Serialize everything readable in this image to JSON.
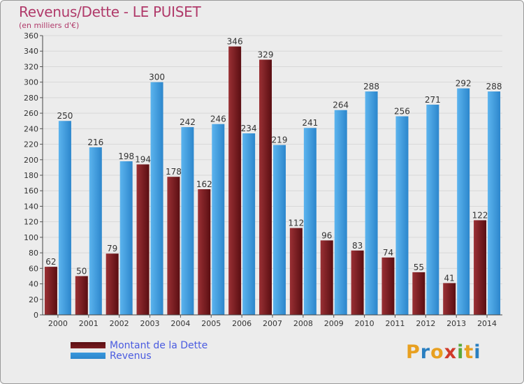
{
  "header": {
    "title": "Revenus/Dette - LE PUISET",
    "subtitle": "(en milliers d'€)"
  },
  "colors": {
    "dette": "#7a1c20",
    "revenus": "#3a98dc",
    "title": "#b03a6a",
    "legend_text": "#4a5be0"
  },
  "legend": {
    "dette_label": "Montant de la Dette",
    "revenus_label": "Revenus"
  },
  "brand": {
    "letters": [
      "P",
      "r",
      "o",
      "x",
      "i",
      "t",
      "i"
    ],
    "colors": [
      "#e8a020",
      "#2a7fc0",
      "#e8a020",
      "#d03a2a",
      "#5aa83a",
      "#e8a020",
      "#2a7fc0"
    ]
  },
  "chart_data": {
    "type": "bar",
    "title": "Revenus/Dette - LE PUISET",
    "ylabel": "(en milliers d'€)",
    "xlabel": "",
    "ylim": [
      0,
      360
    ],
    "ytick_step": 20,
    "grid": true,
    "categories": [
      "2000",
      "2001",
      "2002",
      "2003",
      "2004",
      "2005",
      "2006",
      "2007",
      "2008",
      "2009",
      "2010",
      "2011",
      "2012",
      "2013",
      "2014"
    ],
    "series": [
      {
        "name": "Montant de la Dette",
        "values": [
          62,
          50,
          79,
          194,
          178,
          162,
          346,
          329,
          112,
          96,
          83,
          74,
          55,
          41,
          122
        ]
      },
      {
        "name": "Revenus",
        "values": [
          250,
          216,
          198,
          300,
          242,
          246,
          234,
          219,
          241,
          264,
          288,
          256,
          271,
          292,
          288
        ]
      }
    ]
  }
}
